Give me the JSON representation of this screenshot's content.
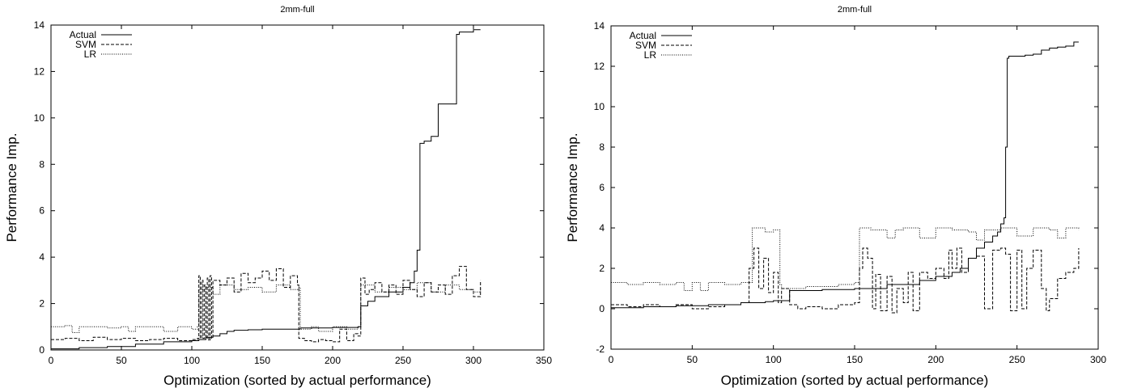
{
  "chart_data": [
    {
      "type": "line",
      "title": "2mm-full",
      "xlabel": "Optimization (sorted by actual performance)",
      "ylabel": "Performance Imp.",
      "xlim": [
        0,
        350
      ],
      "ylim": [
        0,
        14
      ],
      "xticks": [
        0,
        50,
        100,
        150,
        200,
        250,
        300,
        350
      ],
      "yticks": [
        0,
        2,
        4,
        6,
        8,
        10,
        12,
        14
      ],
      "grid": false,
      "legend_position": "top-left",
      "series": [
        {
          "name": "Actual",
          "style": "solid",
          "x": [
            0,
            15,
            20,
            40,
            60,
            80,
            100,
            105,
            110,
            115,
            120,
            125,
            130,
            140,
            150,
            175,
            177,
            200,
            218,
            220,
            225,
            230,
            240,
            250,
            255,
            258,
            260,
            262,
            265,
            270,
            275,
            285,
            288,
            290,
            295,
            300,
            305
          ],
          "y": [
            0.05,
            0.05,
            0.1,
            0.15,
            0.25,
            0.35,
            0.4,
            0.45,
            0.55,
            0.6,
            0.7,
            0.8,
            0.85,
            0.87,
            0.9,
            0.9,
            0.95,
            0.97,
            1.0,
            1.9,
            2.1,
            2.3,
            2.5,
            2.7,
            2.9,
            3.4,
            4.3,
            8.9,
            9.0,
            9.2,
            10.6,
            10.6,
            13.6,
            13.7,
            13.7,
            13.8,
            13.8
          ]
        },
        {
          "name": "SVM",
          "style": "dashed",
          "x": [
            0,
            10,
            20,
            30,
            40,
            50,
            60,
            70,
            80,
            90,
            100,
            104,
            105,
            106,
            107,
            108,
            109,
            110,
            111,
            112,
            113,
            114,
            115,
            120,
            125,
            130,
            135,
            140,
            145,
            150,
            155,
            160,
            165,
            170,
            175,
            176,
            180,
            185,
            190,
            195,
            200,
            205,
            210,
            215,
            218,
            220,
            223,
            226,
            230,
            235,
            240,
            245,
            250,
            255,
            260,
            265,
            270,
            275,
            280,
            285,
            290,
            295,
            300,
            305
          ],
          "y": [
            0.45,
            0.5,
            0.4,
            0.55,
            0.45,
            0.5,
            0.4,
            0.45,
            0.5,
            0.4,
            0.45,
            0.5,
            3.2,
            0.5,
            3.0,
            0.5,
            2.8,
            0.5,
            3.1,
            0.4,
            3.2,
            0.5,
            3.0,
            2.8,
            3.1,
            2.5,
            3.3,
            2.9,
            3.1,
            3.4,
            3.0,
            3.5,
            2.7,
            3.2,
            2.8,
            0.5,
            0.4,
            0.35,
            0.45,
            0.4,
            0.35,
            0.9,
            0.4,
            0.7,
            0.6,
            3.1,
            2.4,
            2.6,
            2.9,
            2.5,
            2.8,
            2.4,
            3.0,
            2.6,
            2.3,
            2.9,
            2.5,
            2.8,
            2.4,
            3.2,
            3.6,
            2.6,
            2.3,
            3.0
          ]
        },
        {
          "name": "LR",
          "style": "dotted",
          "x": [
            0,
            10,
            15,
            20,
            30,
            40,
            50,
            55,
            60,
            70,
            80,
            90,
            100,
            104,
            105,
            110,
            115,
            120,
            130,
            140,
            150,
            160,
            170,
            176,
            177,
            185,
            190,
            200,
            210,
            218,
            220,
            230,
            240,
            250,
            260,
            270,
            280,
            290,
            300,
            305
          ],
          "y": [
            1.0,
            1.05,
            0.75,
            1.0,
            1.0,
            0.95,
            1.0,
            0.8,
            1.0,
            1.0,
            0.8,
            1.0,
            0.9,
            1.0,
            2.6,
            2.7,
            2.4,
            2.8,
            2.6,
            2.7,
            2.5,
            2.8,
            2.6,
            2.7,
            0.9,
            1.0,
            0.8,
            1.0,
            0.9,
            1.0,
            2.8,
            2.5,
            2.7,
            2.6,
            2.9,
            2.5,
            2.8,
            2.6,
            2.5,
            2.7
          ]
        }
      ]
    },
    {
      "type": "line",
      "title": "2mm-full",
      "xlabel": "Optimization (sorted by actual performance)",
      "ylabel": "Performance Imp.",
      "xlim": [
        0,
        300
      ],
      "ylim": [
        -2,
        14
      ],
      "xticks": [
        0,
        50,
        100,
        150,
        200,
        250,
        300
      ],
      "yticks": [
        -2,
        0,
        2,
        4,
        6,
        8,
        10,
        12,
        14
      ],
      "grid": false,
      "legend_position": "top-left",
      "series": [
        {
          "name": "Actual",
          "style": "solid",
          "x": [
            0,
            20,
            40,
            60,
            80,
            95,
            100,
            108,
            110,
            130,
            150,
            170,
            190,
            200,
            210,
            215,
            220,
            225,
            230,
            235,
            238,
            240,
            242,
            243,
            244,
            245,
            250,
            255,
            260,
            265,
            270,
            275,
            280,
            285,
            288
          ],
          "y": [
            0.05,
            0.1,
            0.15,
            0.2,
            0.3,
            0.35,
            0.4,
            0.4,
            0.9,
            0.95,
            1.0,
            1.2,
            1.4,
            1.6,
            1.8,
            2.0,
            2.5,
            3.0,
            3.3,
            3.6,
            3.8,
            4.2,
            4.5,
            8.0,
            12.4,
            12.5,
            12.5,
            12.55,
            12.6,
            12.8,
            12.9,
            12.95,
            13.0,
            13.2,
            13.2
          ]
        },
        {
          "name": "SVM",
          "style": "dashed",
          "x": [
            0,
            10,
            20,
            30,
            40,
            50,
            60,
            70,
            80,
            85,
            88,
            91,
            94,
            97,
            100,
            103,
            105,
            110,
            115,
            120,
            130,
            140,
            150,
            153,
            155,
            158,
            161,
            163,
            166,
            170,
            173,
            176,
            180,
            183,
            186,
            190,
            195,
            200,
            205,
            208,
            210,
            213,
            216,
            220,
            225,
            230,
            235,
            240,
            243,
            246,
            250,
            253,
            256,
            260,
            265,
            268,
            270,
            275,
            280,
            285,
            288
          ],
          "y": [
            0.2,
            0.1,
            0.2,
            0.1,
            0.2,
            0.0,
            0.1,
            0.2,
            0.3,
            2.0,
            3.0,
            1.0,
            2.5,
            0.8,
            1.8,
            0.3,
            1.0,
            0.2,
            0.0,
            0.1,
            0.0,
            0.2,
            0.3,
            2.0,
            3.0,
            2.5,
            0.0,
            1.7,
            -0.1,
            1.6,
            -0.2,
            1.0,
            0.3,
            1.8,
            -0.1,
            1.8,
            1.5,
            2.0,
            1.5,
            2.9,
            2.0,
            3.0,
            1.8,
            2.5,
            2.6,
            0.0,
            2.9,
            3.0,
            2.7,
            -0.1,
            2.9,
            0.0,
            2.0,
            2.9,
            1.0,
            -0.1,
            0.5,
            1.5,
            1.8,
            2.0,
            3.0
          ]
        },
        {
          "name": "LR",
          "style": "dotted",
          "x": [
            0,
            10,
            20,
            30,
            40,
            45,
            50,
            55,
            60,
            70,
            80,
            86,
            87,
            95,
            100,
            104,
            105,
            120,
            140,
            150,
            152,
            153,
            160,
            170,
            175,
            180,
            190,
            200,
            210,
            220,
            225,
            230,
            240,
            245,
            250,
            260,
            270,
            275,
            280,
            288
          ],
          "y": [
            1.3,
            1.2,
            1.3,
            1.2,
            1.3,
            0.9,
            1.3,
            0.9,
            1.3,
            1.2,
            1.3,
            1.3,
            4.0,
            3.8,
            3.9,
            1.2,
            1.0,
            1.1,
            1.2,
            1.3,
            1.3,
            4.0,
            3.9,
            3.5,
            3.9,
            4.0,
            3.5,
            4.0,
            3.9,
            3.8,
            3.4,
            3.9,
            4.0,
            4.0,
            3.6,
            4.0,
            3.9,
            3.5,
            4.0,
            3.9
          ]
        }
      ]
    }
  ]
}
